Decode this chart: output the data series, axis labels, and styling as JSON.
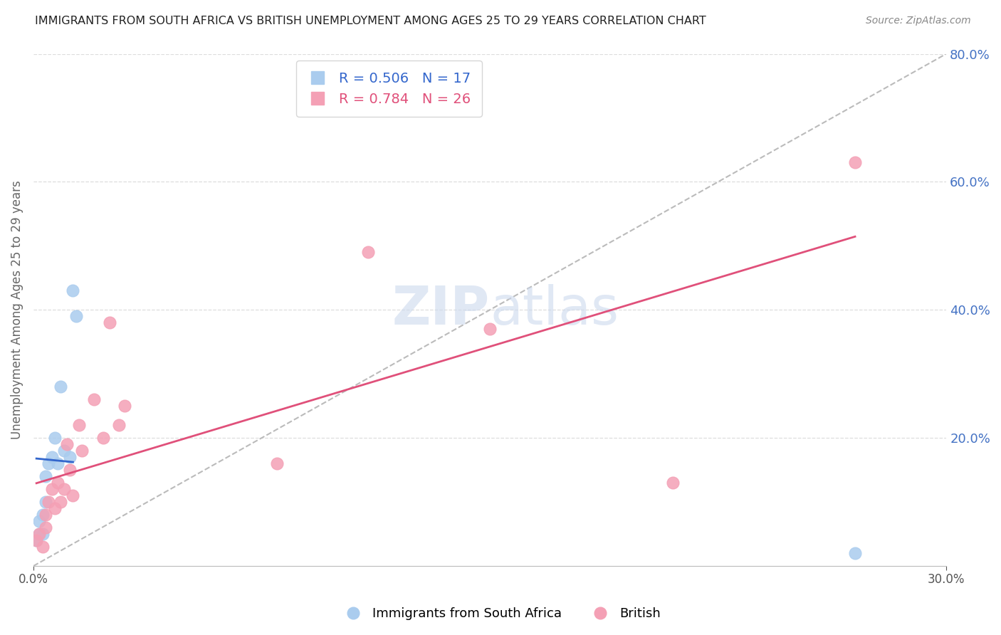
{
  "title": "IMMIGRANTS FROM SOUTH AFRICA VS BRITISH UNEMPLOYMENT AMONG AGES 25 TO 29 YEARS CORRELATION CHART",
  "source": "Source: ZipAtlas.com",
  "ylabel": "Unemployment Among Ages 25 to 29 years",
  "xlim": [
    0.0,
    0.3
  ],
  "ylim": [
    0.0,
    0.8
  ],
  "xticks": [
    0.0,
    0.3
  ],
  "yticks_right": [
    0.2,
    0.4,
    0.6,
    0.8
  ],
  "background_color": "#ffffff",
  "grid_color": "#cccccc",
  "title_color": "#222222",
  "right_axis_color": "#4472c4",
  "series1": {
    "label": "Immigrants from South Africa",
    "R": 0.506,
    "N": 17,
    "color": "#aaccee",
    "line_color": "#3366cc",
    "x": [
      0.001,
      0.002,
      0.002,
      0.003,
      0.003,
      0.004,
      0.004,
      0.005,
      0.006,
      0.007,
      0.008,
      0.009,
      0.01,
      0.012,
      0.013,
      0.014,
      0.27
    ],
    "y": [
      0.04,
      0.05,
      0.07,
      0.08,
      0.05,
      0.1,
      0.14,
      0.16,
      0.17,
      0.2,
      0.16,
      0.28,
      0.18,
      0.17,
      0.43,
      0.39,
      0.02
    ]
  },
  "series2": {
    "label": "British",
    "R": 0.784,
    "N": 26,
    "color": "#f4a0b5",
    "line_color": "#e0507a",
    "x": [
      0.001,
      0.002,
      0.003,
      0.004,
      0.004,
      0.005,
      0.006,
      0.007,
      0.008,
      0.009,
      0.01,
      0.011,
      0.012,
      0.013,
      0.015,
      0.016,
      0.02,
      0.023,
      0.025,
      0.028,
      0.03,
      0.08,
      0.11,
      0.15,
      0.21,
      0.27
    ],
    "y": [
      0.04,
      0.05,
      0.03,
      0.06,
      0.08,
      0.1,
      0.12,
      0.09,
      0.13,
      0.1,
      0.12,
      0.19,
      0.15,
      0.11,
      0.22,
      0.18,
      0.26,
      0.2,
      0.38,
      0.22,
      0.25,
      0.16,
      0.49,
      0.37,
      0.13,
      0.63
    ]
  },
  "ref_line": {
    "x0": 0.0,
    "y0": 0.0,
    "x1": 0.3,
    "y1": 0.8
  }
}
